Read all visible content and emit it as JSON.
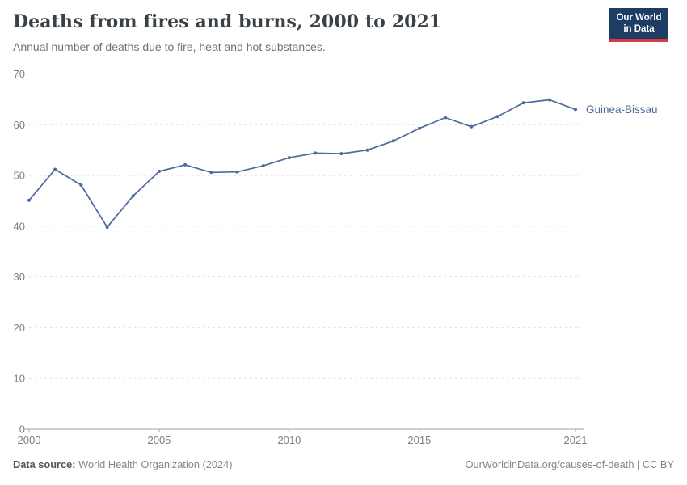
{
  "header": {
    "title": "Deaths from fires and burns, 2000 to 2021",
    "subtitle": "Annual number of deaths due to fire, heat and hot substances.",
    "logo": {
      "line1": "Our World",
      "line2": "in Data"
    }
  },
  "chart_data": {
    "type": "line",
    "title": "Deaths from fires and burns, 2000 to 2021",
    "subtitle": "Annual number of deaths due to fire, heat and hot substances.",
    "x": [
      2000,
      2001,
      2002,
      2003,
      2004,
      2005,
      2006,
      2007,
      2008,
      2009,
      2010,
      2011,
      2012,
      2013,
      2014,
      2015,
      2016,
      2017,
      2018,
      2019,
      2020,
      2021
    ],
    "series": [
      {
        "name": "Guinea-Bissau",
        "color": "#4C6A9C",
        "values": [
          45.1,
          51.2,
          48.1,
          39.8,
          46.0,
          50.8,
          52.1,
          50.6,
          50.7,
          51.9,
          53.5,
          54.4,
          54.3,
          55.0,
          56.8,
          59.3,
          61.4,
          59.6,
          61.6,
          64.3,
          64.9,
          63.0
        ]
      }
    ],
    "xlabel": "",
    "ylabel": "",
    "ylim": [
      0,
      70
    ],
    "yticks": [
      0,
      10,
      20,
      30,
      40,
      50,
      60,
      70
    ],
    "xticks": [
      2000,
      2005,
      2010,
      2015,
      2021
    ],
    "grid": "horizontal-dashed",
    "legend_position": "end-of-line-label",
    "marker": "dot"
  },
  "footer": {
    "source_label": "Data source:",
    "source_value": "World Health Organization (2024)",
    "link": "OurWorldinData.org/causes-of-death",
    "separator": " | ",
    "license": "CC BY"
  },
  "colors": {
    "line": "#4C6A9C",
    "title": "#3a4146",
    "subtitle": "#6d737a",
    "tick_label": "#7f7f7f",
    "gridline": "#dddddd",
    "axis": "#a3a3a3",
    "logo_bg": "#1d3d63",
    "logo_accent": "#d73a42"
  }
}
